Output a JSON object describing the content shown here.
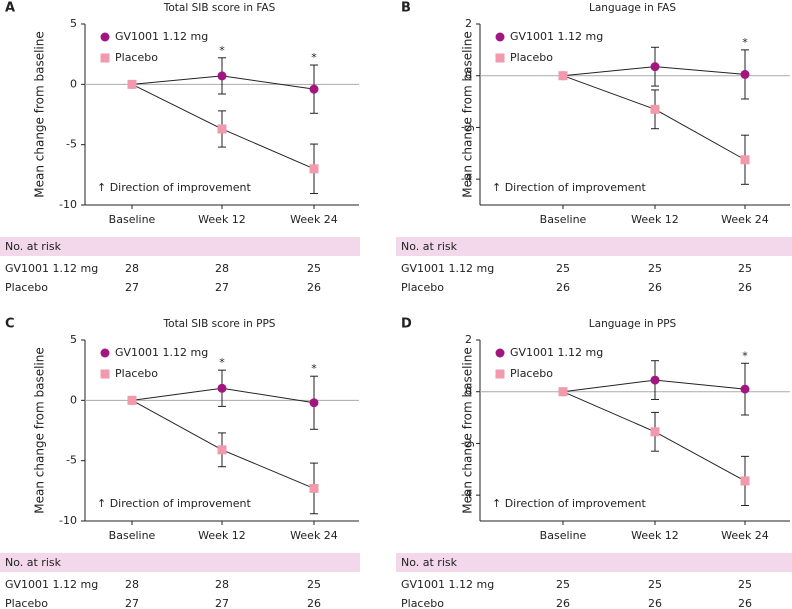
{
  "chart_data": [
    {
      "type": "line",
      "panel": "A",
      "title": "Total SIB score in FAS",
      "ylabel": "Mean change from baseline",
      "categories": [
        "Baseline",
        "Week 12",
        "Week 24"
      ],
      "ylim": [
        -10,
        5
      ],
      "yticks": [
        5,
        0,
        -5,
        -10
      ],
      "series": [
        {
          "name": "GV1001 1.12 mg",
          "color": "#a3167f",
          "marker": "circle",
          "values": [
            0,
            0.7,
            -0.4
          ],
          "errors": [
            null,
            1.5,
            2.0
          ]
        },
        {
          "name": "Placebo",
          "color": "#f29aac",
          "marker": "square",
          "values": [
            0,
            -3.7,
            -7.0
          ],
          "errors": [
            null,
            1.5,
            2.05
          ]
        }
      ],
      "annotations": [
        {
          "text": "*",
          "x": "Week 12"
        },
        {
          "text": "*",
          "x": "Week 24"
        }
      ],
      "note": "↑ Direction of improvement",
      "risk_table": {
        "title": "No. at risk",
        "rows": [
          {
            "name": "GV1001 1.12 mg",
            "values": [
              28,
              28,
              25
            ]
          },
          {
            "name": "Placebo",
            "values": [
              27,
              27,
              26
            ]
          }
        ]
      }
    },
    {
      "type": "line",
      "panel": "B",
      "title": "Language in FAS",
      "ylabel": "Mean change from baseline",
      "categories": [
        "Baseline",
        "Week 12",
        "Week 24"
      ],
      "ylim": [
        -5,
        2
      ],
      "yticks": [
        2,
        0,
        -2,
        -4
      ],
      "series": [
        {
          "name": "GV1001 1.12 mg",
          "color": "#a3167f",
          "marker": "circle",
          "values": [
            0,
            0.35,
            0.05
          ],
          "errors": [
            null,
            0.75,
            0.95
          ]
        },
        {
          "name": "Placebo",
          "color": "#f29aac",
          "marker": "square",
          "values": [
            0,
            -1.3,
            -3.25
          ],
          "errors": [
            null,
            0.75,
            0.95
          ]
        }
      ],
      "annotations": [
        {
          "text": "*",
          "x": "Week 24"
        }
      ],
      "note": "↑ Direction of improvement",
      "risk_table": {
        "title": "No. at risk",
        "rows": [
          {
            "name": "GV1001 1.12 mg",
            "values": [
              25,
              25,
              25
            ]
          },
          {
            "name": "Placebo",
            "values": [
              26,
              26,
              26
            ]
          }
        ]
      }
    },
    {
      "type": "line",
      "panel": "C",
      "title": "Total SIB score in PPS",
      "ylabel": "Mean change from baseline",
      "categories": [
        "Baseline",
        "Week 12",
        "Week 24"
      ],
      "ylim": [
        -10,
        5
      ],
      "yticks": [
        5,
        0,
        -5,
        -10
      ],
      "series": [
        {
          "name": "GV1001 1.12 mg",
          "color": "#a3167f",
          "marker": "circle",
          "values": [
            0,
            1.0,
            -0.2
          ],
          "errors": [
            null,
            1.5,
            2.2
          ]
        },
        {
          "name": "Placebo",
          "color": "#f29aac",
          "marker": "square",
          "values": [
            0,
            -4.1,
            -7.3
          ],
          "errors": [
            null,
            1.4,
            2.1
          ]
        }
      ],
      "annotations": [
        {
          "text": "*",
          "x": "Week 12"
        },
        {
          "text": "*",
          "x": "Week 24"
        }
      ],
      "note": "↑ Direction of improvement",
      "risk_table": {
        "title": "No. at risk",
        "rows": [
          {
            "name": "GV1001 1.12 mg",
            "values": [
              28,
              28,
              25
            ]
          },
          {
            "name": "Placebo",
            "values": [
              27,
              27,
              26
            ]
          }
        ]
      }
    },
    {
      "type": "line",
      "panel": "D",
      "title": "Language in PPS",
      "ylabel": "Mean change from baseline",
      "categories": [
        "Baseline",
        "Week 12",
        "Week 24"
      ],
      "ylim": [
        -5,
        2
      ],
      "yticks": [
        2,
        0,
        -2,
        -4
      ],
      "series": [
        {
          "name": "GV1001 1.12 mg",
          "color": "#a3167f",
          "marker": "circle",
          "values": [
            0,
            0.45,
            0.1
          ],
          "errors": [
            null,
            0.75,
            1.0
          ]
        },
        {
          "name": "Placebo",
          "color": "#f29aac",
          "marker": "square",
          "values": [
            0,
            -1.55,
            -3.45
          ],
          "errors": [
            null,
            0.75,
            0.95
          ]
        }
      ],
      "annotations": [
        {
          "text": "*",
          "x": "Week 24"
        }
      ],
      "note": "↑ Direction of improvement",
      "risk_table": {
        "title": "No. at risk",
        "rows": [
          {
            "name": "GV1001 1.12 mg",
            "values": [
              25,
              25,
              25
            ]
          },
          {
            "name": "Placebo",
            "values": [
              26,
              26,
              26
            ]
          }
        ]
      }
    }
  ]
}
